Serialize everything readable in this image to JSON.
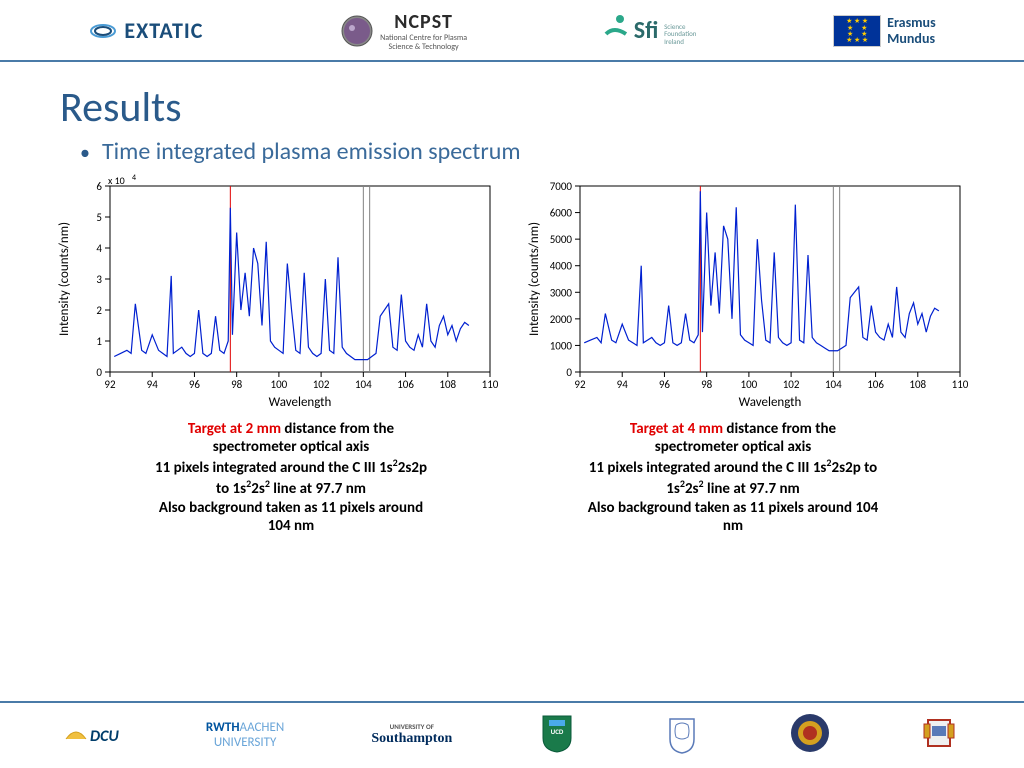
{
  "header": {
    "extatic": "EXTATIC",
    "ncpst": "NCPST",
    "ncpst_sub1": "National Centre for Plasma",
    "ncpst_sub2": "Science & Technology",
    "sfi": "Sfi",
    "sfi_sub1": "Science",
    "sfi_sub2": "Foundation",
    "sfi_sub3": "Ireland",
    "erasmus1": "Erasmus",
    "erasmus2": "Mundus"
  },
  "title": "Results",
  "subtitle": "Time integrated plasma emission spectrum",
  "chart_left": {
    "type": "line",
    "xlabel": "Wavelength",
    "ylabel": "Intensity (counts/nm)",
    "xlim": [
      92,
      110
    ],
    "ylim": [
      0,
      6
    ],
    "y_exponent": "x 10",
    "y_exp_sup": "4",
    "xticks": [
      92,
      94,
      96,
      98,
      100,
      102,
      104,
      106,
      108,
      110
    ],
    "yticks": [
      0,
      1,
      2,
      3,
      4,
      5,
      6
    ],
    "line_color": "#0020d0",
    "axis_color": "#000000",
    "background_color": "#ffffff",
    "tick_fontsize": 11,
    "label_fontsize": 13,
    "vlines": [
      {
        "x": 97.7,
        "color": "#e00000"
      },
      {
        "x": 104.0,
        "color": "#808080"
      },
      {
        "x": 104.3,
        "color": "#808080"
      }
    ],
    "data_x": [
      92.2,
      92.5,
      92.8,
      93.0,
      93.2,
      93.5,
      93.7,
      94.0,
      94.3,
      94.5,
      94.7,
      94.9,
      95.0,
      95.2,
      95.4,
      95.6,
      95.8,
      96.0,
      96.2,
      96.4,
      96.6,
      96.8,
      97.0,
      97.2,
      97.4,
      97.6,
      97.7,
      97.8,
      98.0,
      98.2,
      98.4,
      98.6,
      98.8,
      99.0,
      99.2,
      99.4,
      99.6,
      99.8,
      100.0,
      100.2,
      100.4,
      100.6,
      100.8,
      101.0,
      101.2,
      101.4,
      101.6,
      101.8,
      102.0,
      102.2,
      102.4,
      102.6,
      102.8,
      103.0,
      103.2,
      103.4,
      103.6,
      103.8,
      104.0,
      104.2,
      104.4,
      104.6,
      104.8,
      105.0,
      105.2,
      105.4,
      105.6,
      105.8,
      106.0,
      106.2,
      106.4,
      106.6,
      106.8,
      107.0,
      107.2,
      107.4,
      107.6,
      107.8,
      108.0,
      108.2,
      108.4,
      108.6,
      108.8,
      109.0
    ],
    "data_y": [
      0.5,
      0.6,
      0.7,
      0.6,
      2.2,
      0.7,
      0.6,
      1.2,
      0.7,
      0.6,
      0.5,
      3.1,
      0.6,
      0.7,
      0.8,
      0.6,
      0.5,
      0.6,
      2.0,
      0.6,
      0.5,
      0.6,
      1.8,
      0.7,
      0.6,
      1.0,
      5.3,
      1.2,
      4.5,
      2.0,
      3.2,
      1.8,
      4.0,
      3.5,
      1.5,
      4.2,
      1.0,
      0.8,
      0.7,
      0.6,
      3.5,
      2.0,
      0.7,
      0.6,
      3.2,
      0.8,
      0.6,
      0.5,
      0.6,
      3.0,
      0.7,
      0.6,
      3.7,
      0.8,
      0.6,
      0.5,
      0.4,
      0.4,
      0.4,
      0.4,
      0.5,
      0.6,
      1.8,
      2.0,
      2.2,
      0.8,
      0.7,
      2.5,
      1.0,
      0.8,
      0.7,
      1.2,
      0.8,
      2.2,
      1.0,
      0.8,
      1.5,
      1.8,
      1.2,
      1.5,
      1.0,
      1.4,
      1.6,
      1.5
    ]
  },
  "chart_right": {
    "type": "line",
    "xlabel": "Wavelength",
    "ylabel": "Intensity (counts/nm)",
    "xlim": [
      92,
      110
    ],
    "ylim": [
      0,
      7000
    ],
    "xticks": [
      92,
      94,
      96,
      98,
      100,
      102,
      104,
      106,
      108,
      110
    ],
    "yticks": [
      0,
      1000,
      2000,
      3000,
      4000,
      5000,
      6000,
      7000
    ],
    "line_color": "#0020d0",
    "axis_color": "#000000",
    "background_color": "#ffffff",
    "tick_fontsize": 11,
    "label_fontsize": 13,
    "vlines": [
      {
        "x": 97.7,
        "color": "#e00000"
      },
      {
        "x": 104.0,
        "color": "#808080"
      },
      {
        "x": 104.3,
        "color": "#808080"
      }
    ],
    "data_x": [
      92.2,
      92.5,
      92.8,
      93.0,
      93.2,
      93.5,
      93.7,
      94.0,
      94.3,
      94.5,
      94.7,
      94.9,
      95.0,
      95.2,
      95.4,
      95.6,
      95.8,
      96.0,
      96.2,
      96.4,
      96.6,
      96.8,
      97.0,
      97.2,
      97.4,
      97.6,
      97.7,
      97.8,
      98.0,
      98.2,
      98.4,
      98.6,
      98.8,
      99.0,
      99.2,
      99.4,
      99.6,
      99.8,
      100.0,
      100.2,
      100.4,
      100.6,
      100.8,
      101.0,
      101.2,
      101.4,
      101.6,
      101.8,
      102.0,
      102.2,
      102.4,
      102.6,
      102.8,
      103.0,
      103.2,
      103.4,
      103.6,
      103.8,
      104.0,
      104.2,
      104.4,
      104.6,
      104.8,
      105.0,
      105.2,
      105.4,
      105.6,
      105.8,
      106.0,
      106.2,
      106.4,
      106.6,
      106.8,
      107.0,
      107.2,
      107.4,
      107.6,
      107.8,
      108.0,
      108.2,
      108.4,
      108.6,
      108.8,
      109.0
    ],
    "data_y": [
      1100,
      1200,
      1300,
      1100,
      2200,
      1200,
      1100,
      1800,
      1200,
      1100,
      1000,
      4000,
      1100,
      1200,
      1300,
      1100,
      1000,
      1100,
      2500,
      1100,
      1000,
      1100,
      2200,
      1200,
      1100,
      1400,
      6800,
      1500,
      6000,
      2500,
      4500,
      2200,
      5500,
      5000,
      2000,
      6200,
      1400,
      1200,
      1100,
      1000,
      5000,
      2700,
      1200,
      1100,
      4500,
      1300,
      1100,
      1000,
      1100,
      6300,
      1200,
      1100,
      4400,
      1300,
      1100,
      1000,
      900,
      800,
      800,
      800,
      900,
      1000,
      2800,
      3000,
      3200,
      1300,
      1200,
      2500,
      1500,
      1300,
      1200,
      1800,
      1300,
      3200,
      1500,
      1300,
      2200,
      2600,
      1800,
      2200,
      1500,
      2100,
      2400,
      2300
    ]
  },
  "caption_left": {
    "target": "Target at 2 mm ",
    "rest1": "distance from the",
    "line2": "spectrometer optical axis",
    "line3a": "11 pixels integrated around the C III 1s",
    "line3b": "2s2p",
    "line4a": "to 1s",
    "line4b": "2s",
    "line4c": " line at 97.7 nm",
    "line5": "Also background taken as 11 pixels around",
    "line6": "104 nm"
  },
  "caption_right": {
    "target": "Target at 4 mm ",
    "rest1": "distance from the",
    "line2": "spectrometer optical axis",
    "line3a": "11 pixels integrated around the C III 1s",
    "line3b": "2s2p to",
    "line4a": "1s",
    "line4b": "2s",
    "line4c": " line at 97.7 nm",
    "line5": "Also background taken as 11 pixels around 104",
    "line6": "nm"
  },
  "footer": {
    "dcu": "DCU",
    "rwth1": "RWTH",
    "rwth2": "AACHEN",
    "rwth3": "UNIVERSITY",
    "soton_sup": "UNIVERSITY OF",
    "soton": "Southampton",
    "ucd": "UCD"
  }
}
